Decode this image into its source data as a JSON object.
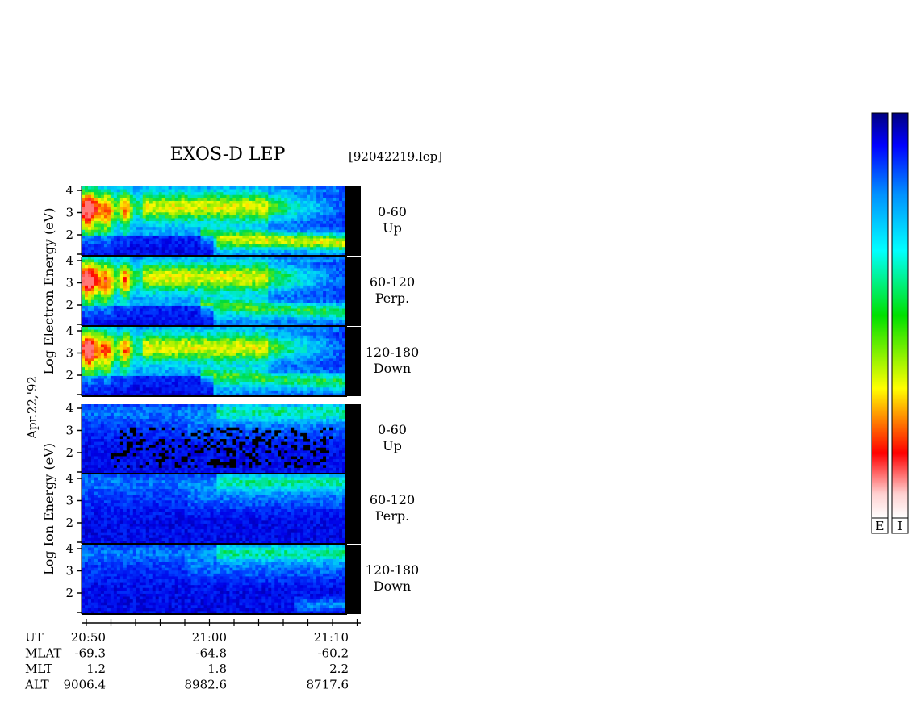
{
  "chart_data": {
    "type": "heatmap",
    "title": "EXOS-D LEP",
    "file_label": "[92042219.lep]",
    "date_label": "Apr.22,'92",
    "ylabel_groups": [
      {
        "name": "electron",
        "words": [
          "Log",
          "Electron",
          "Energy",
          "(eV)"
        ]
      },
      {
        "name": "ion",
        "words": [
          "Log",
          "Ion",
          "Energy",
          "(eV)"
        ]
      }
    ],
    "y_ticks": [
      "4",
      "3",
      "2"
    ],
    "panels": [
      {
        "group": "electron",
        "pitch": "0-60",
        "dir": "Up"
      },
      {
        "group": "electron",
        "pitch": "60-120",
        "dir": "Perp."
      },
      {
        "group": "electron",
        "pitch": "120-180",
        "dir": "Down"
      },
      {
        "group": "ion",
        "pitch": "0-60",
        "dir": "Up"
      },
      {
        "group": "ion",
        "pitch": "60-120",
        "dir": "Perp."
      },
      {
        "group": "ion",
        "pitch": "120-180",
        "dir": "Down"
      }
    ],
    "x_axis": {
      "ticks": [
        "20:50",
        "21:00",
        "21:10"
      ],
      "rows": [
        {
          "label": "UT",
          "values": [
            "20:50",
            "21:00",
            "21:10"
          ]
        },
        {
          "label": "MLAT",
          "values": [
            "-69.3",
            "-64.8",
            "-60.2"
          ]
        },
        {
          "label": "MLT",
          "values": [
            "1.2",
            "1.8",
            "2.2"
          ]
        },
        {
          "label": "ALT",
          "values": [
            "9006.4",
            "8982.6",
            "8717.6"
          ]
        }
      ]
    },
    "colorbars": [
      {
        "name": "electron-colorbar",
        "label": "E"
      },
      {
        "name": "ion-colorbar",
        "label": "I"
      }
    ],
    "colormap": [
      "#ffffff",
      "#ffc8c8",
      "#ff0000",
      "#ff8000",
      "#ffff00",
      "#00e000",
      "#00ffff",
      "#0090ff",
      "#0000ff",
      "#000080"
    ]
  }
}
